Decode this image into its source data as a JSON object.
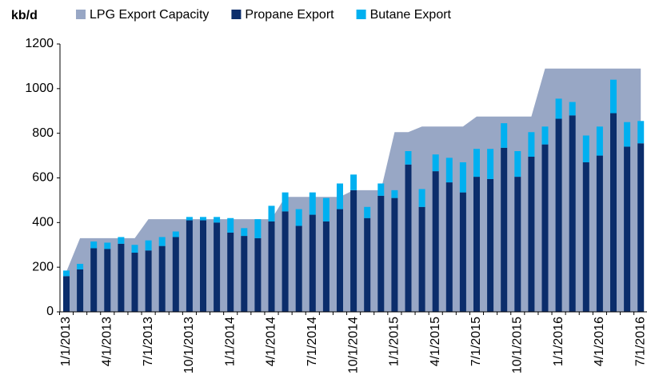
{
  "chart_data": {
    "type": "bar",
    "y_label": "kb/d",
    "categories": [
      "1/1/2013",
      null,
      null,
      "4/1/2013",
      null,
      null,
      "7/1/2013",
      null,
      null,
      "10/1/2013",
      null,
      null,
      "1/1/2014",
      null,
      null,
      "4/1/2014",
      null,
      null,
      "7/1/2014",
      null,
      null,
      "10/1/2014",
      null,
      null,
      "1/1/2015",
      null,
      null,
      "4/1/2015",
      null,
      null,
      "7/1/2015",
      null,
      null,
      "10/1/2015",
      null,
      null,
      "1/1/2016",
      null,
      null,
      "4/1/2016",
      null,
      null,
      "7/1/2016"
    ],
    "series": [
      {
        "name": "LPG Export Capacity",
        "color": "#98a7c5",
        "mark": "area",
        "values": [
          180,
          330,
          330,
          330,
          330,
          330,
          415,
          415,
          415,
          415,
          415,
          415,
          415,
          415,
          415,
          415,
          515,
          515,
          515,
          515,
          515,
          545,
          545,
          545,
          805,
          805,
          830,
          830,
          830,
          830,
          875,
          875,
          875,
          875,
          875,
          1090,
          1090,
          1090,
          1090,
          1090,
          1090,
          1090,
          1090
        ]
      },
      {
        "name": "Propane Export",
        "color": "#0b2d6b",
        "mark": "stack",
        "values": [
          160,
          190,
          285,
          282,
          305,
          265,
          275,
          295,
          335,
          410,
          410,
          400,
          355,
          340,
          330,
          405,
          450,
          385,
          435,
          405,
          460,
          545,
          420,
          520,
          510,
          660,
          470,
          630,
          580,
          535,
          605,
          595,
          735,
          605,
          695,
          750,
          865,
          880,
          670,
          700,
          890,
          740,
          755
        ]
      },
      {
        "name": "Butane Export",
        "color": "#00b0f0",
        "mark": "stack",
        "values": [
          25,
          25,
          30,
          28,
          30,
          35,
          45,
          40,
          25,
          15,
          15,
          25,
          65,
          35,
          85,
          70,
          85,
          75,
          100,
          105,
          115,
          70,
          50,
          55,
          35,
          60,
          80,
          75,
          110,
          135,
          125,
          135,
          110,
          115,
          110,
          80,
          90,
          60,
          120,
          130,
          150,
          110,
          100
        ]
      }
    ],
    "ylim": [
      0,
      1200
    ],
    "yticks": [
      0,
      200,
      400,
      600,
      800,
      1000,
      1200
    ],
    "legend": "top"
  }
}
